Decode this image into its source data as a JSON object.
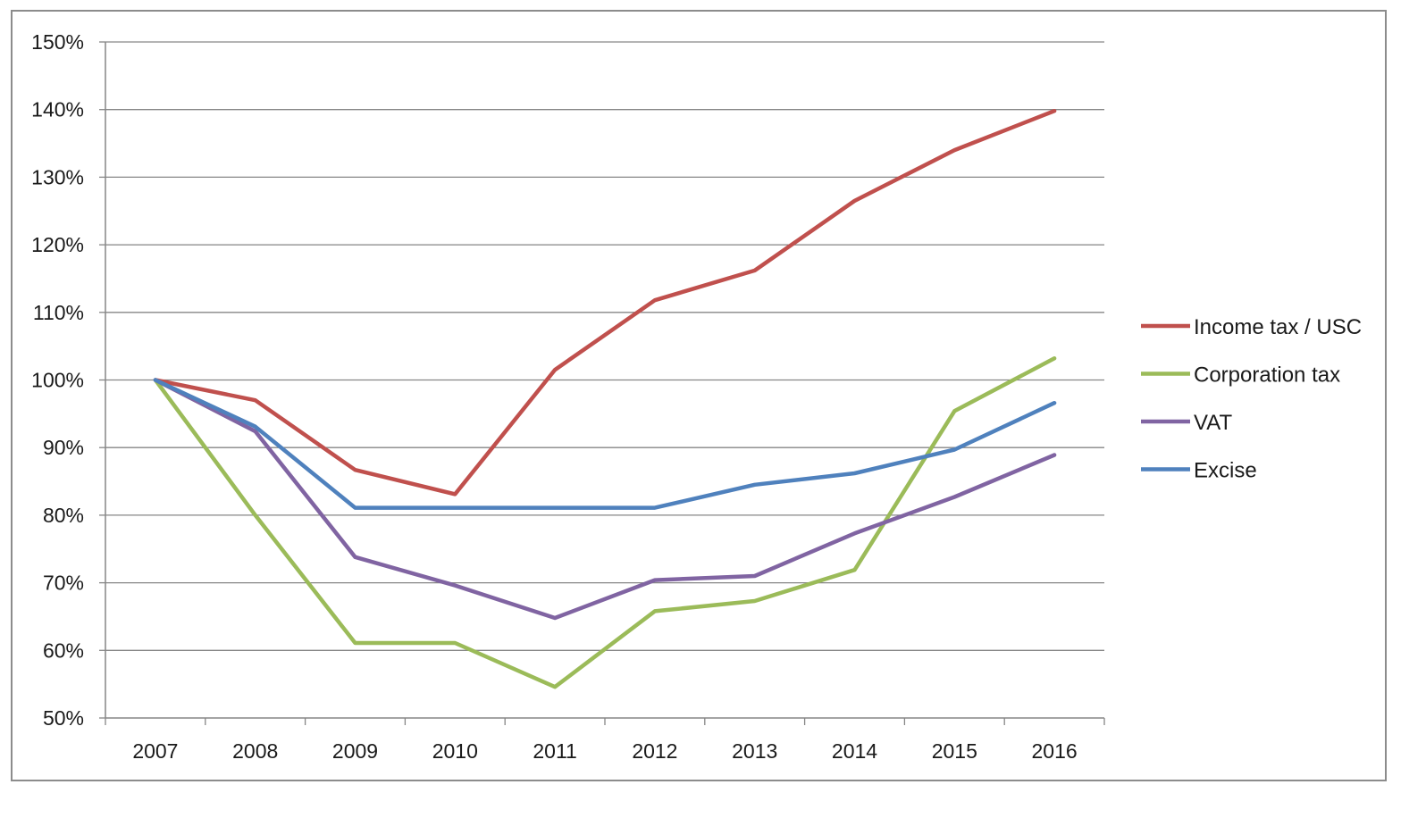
{
  "chart_data": {
    "type": "line",
    "title": "",
    "xlabel": "",
    "ylabel": "",
    "x": [
      "2007",
      "2008",
      "2009",
      "2010",
      "2011",
      "2012",
      "2013",
      "2014",
      "2015",
      "2016"
    ],
    "ylim": [
      50,
      150
    ],
    "y_ticks": [
      50,
      60,
      70,
      80,
      90,
      100,
      110,
      120,
      130,
      140,
      150
    ],
    "y_tick_labels": [
      "50%",
      "60%",
      "70%",
      "80%",
      "90%",
      "100%",
      "110%",
      "120%",
      "130%",
      "140%",
      "150%"
    ],
    "grid": true,
    "legend_position": "right",
    "series": [
      {
        "name": "Income tax / USC",
        "color": "#c0504d",
        "values": [
          100,
          97,
          86.7,
          83.1,
          101.5,
          111.8,
          116.2,
          126.5,
          134,
          139.8
        ]
      },
      {
        "name": "Corporation tax",
        "color": "#9bbb59",
        "values": [
          100,
          80,
          61.1,
          61.1,
          54.6,
          65.8,
          67.3,
          71.9,
          95.4,
          103.2
        ]
      },
      {
        "name": "VAT",
        "color": "#8064a2",
        "values": [
          100,
          92.4,
          73.8,
          69.6,
          64.8,
          70.4,
          71,
          77.3,
          82.7,
          88.9
        ]
      },
      {
        "name": "Excise",
        "color": "#4f81bd",
        "values": [
          100,
          93.1,
          81.1,
          81.1,
          81.1,
          81.1,
          84.5,
          86.2,
          89.7,
          96.6
        ]
      }
    ]
  }
}
